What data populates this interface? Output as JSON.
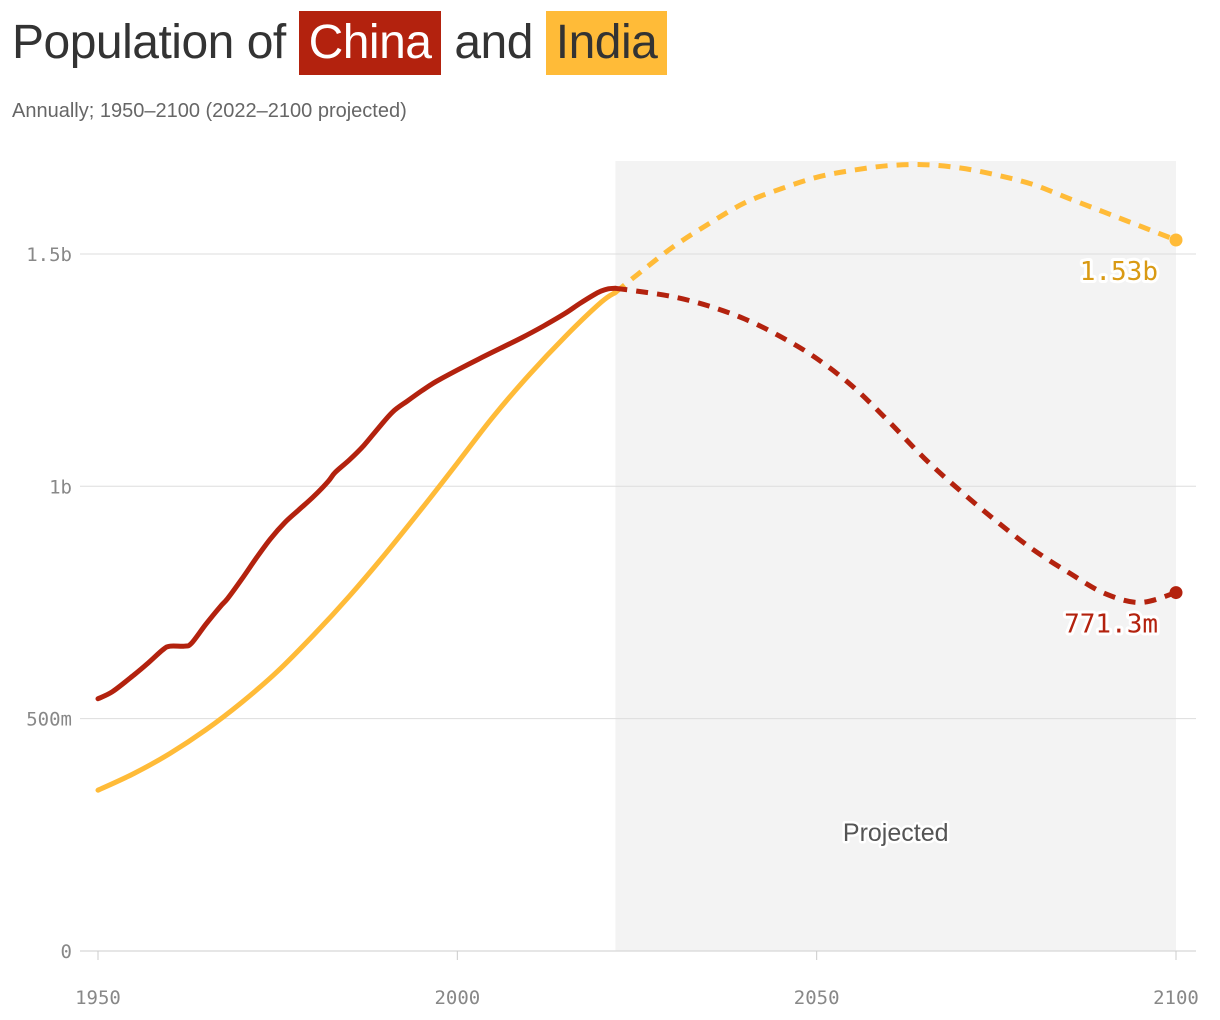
{
  "header": {
    "title_prefix": "Population of",
    "title_china": "China",
    "title_and": "and",
    "title_india": "India",
    "subtitle": "Annually; 1950–2100 (2022–2100 projected)"
  },
  "chart_data": {
    "type": "line",
    "title": "Population of China and India",
    "subtitle": "Annually; 1950–2100 (2022–2100 projected)",
    "xlim": [
      1950,
      2100
    ],
    "ylim": [
      0,
      1700000000
    ],
    "x_ticks": [
      1950,
      2000,
      2050,
      2100
    ],
    "x_tick_labels": [
      "1950",
      "2000",
      "2050",
      "2100"
    ],
    "y_ticks": [
      0,
      500000000,
      1000000000,
      1500000000
    ],
    "y_tick_labels": [
      "0",
      "500m",
      "1b",
      "1.5b"
    ],
    "grid": "horizontal",
    "projected_range": [
      2022,
      2100
    ],
    "projected_label": "Projected",
    "series": [
      {
        "name": "China",
        "color": "#b3220e",
        "end_label": "771.3m",
        "points": [
          [
            1950,
            543000000
          ],
          [
            1952,
            558000000
          ],
          [
            1955,
            594000000
          ],
          [
            1957,
            620000000
          ],
          [
            1959,
            648000000
          ],
          [
            1960,
            656000000
          ],
          [
            1962,
            656000000
          ],
          [
            1963,
            662000000
          ],
          [
            1965,
            703000000
          ],
          [
            1967,
            741000000
          ],
          [
            1968,
            758000000
          ],
          [
            1970,
            800000000
          ],
          [
            1972,
            845000000
          ],
          [
            1974,
            887000000
          ],
          [
            1976,
            922000000
          ],
          [
            1978,
            950000000
          ],
          [
            1980,
            978000000
          ],
          [
            1982,
            1010000000
          ],
          [
            1983,
            1030000000
          ],
          [
            1985,
            1057000000
          ],
          [
            1987,
            1088000000
          ],
          [
            1989,
            1125000000
          ],
          [
            1991,
            1160000000
          ],
          [
            1993,
            1183000000
          ],
          [
            1995,
            1205000000
          ],
          [
            1997,
            1225000000
          ],
          [
            2000,
            1250000000
          ],
          [
            2003,
            1274000000
          ],
          [
            2006,
            1297000000
          ],
          [
            2009,
            1320000000
          ],
          [
            2012,
            1345000000
          ],
          [
            2015,
            1372000000
          ],
          [
            2017,
            1393000000
          ],
          [
            2019,
            1412000000
          ],
          [
            2020,
            1420000000
          ],
          [
            2021,
            1425000000
          ],
          [
            2022,
            1426000000
          ]
        ],
        "projected_points": [
          [
            2022,
            1426000000
          ],
          [
            2025,
            1420000000
          ],
          [
            2030,
            1408000000
          ],
          [
            2035,
            1388000000
          ],
          [
            2040,
            1360000000
          ],
          [
            2045,
            1322000000
          ],
          [
            2050,
            1275000000
          ],
          [
            2055,
            1215000000
          ],
          [
            2060,
            1140000000
          ],
          [
            2065,
            1060000000
          ],
          [
            2070,
            990000000
          ],
          [
            2075,
            925000000
          ],
          [
            2080,
            865000000
          ],
          [
            2085,
            815000000
          ],
          [
            2090,
            770000000
          ],
          [
            2095,
            750000000
          ],
          [
            2100,
            771300000
          ]
        ]
      },
      {
        "name": "India",
        "color": "#ffbb38",
        "end_label": "1.53b",
        "points": [
          [
            1950,
            346000000
          ],
          [
            1955,
            382000000
          ],
          [
            1960,
            425000000
          ],
          [
            1965,
            476000000
          ],
          [
            1970,
            535000000
          ],
          [
            1975,
            602000000
          ],
          [
            1980,
            680000000
          ],
          [
            1985,
            764000000
          ],
          [
            1990,
            855000000
          ],
          [
            1995,
            951000000
          ],
          [
            2000,
            1050000000
          ],
          [
            2005,
            1150000000
          ],
          [
            2010,
            1240000000
          ],
          [
            2015,
            1322000000
          ],
          [
            2020,
            1396000000
          ],
          [
            2022,
            1417000000
          ]
        ],
        "projected_points": [
          [
            2022,
            1417000000
          ],
          [
            2025,
            1455000000
          ],
          [
            2030,
            1515000000
          ],
          [
            2035,
            1565000000
          ],
          [
            2040,
            1610000000
          ],
          [
            2045,
            1640000000
          ],
          [
            2050,
            1665000000
          ],
          [
            2055,
            1680000000
          ],
          [
            2060,
            1690000000
          ],
          [
            2065,
            1692000000
          ],
          [
            2070,
            1685000000
          ],
          [
            2075,
            1670000000
          ],
          [
            2080,
            1650000000
          ],
          [
            2085,
            1620000000
          ],
          [
            2090,
            1590000000
          ],
          [
            2095,
            1560000000
          ],
          [
            2100,
            1530000000
          ]
        ]
      }
    ]
  }
}
